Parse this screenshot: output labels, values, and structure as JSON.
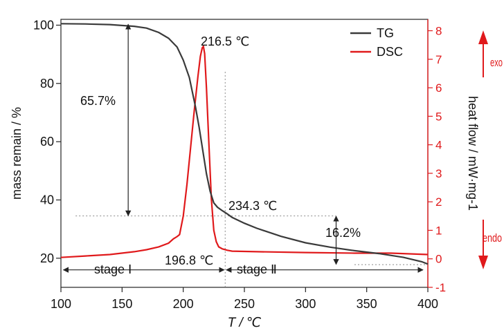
{
  "colors": {
    "tg": "#3a3a3a",
    "dsc": "#e0191b",
    "axis": "#222222",
    "guide": "#888888"
  },
  "chart_data": {
    "type": "line",
    "xlabel": "T / ℃",
    "ylabel": "mass remain / %",
    "y2label": "heat flow / mW·mg-1",
    "xlim": [
      100,
      400
    ],
    "ylim": [
      10,
      102
    ],
    "y2lim": [
      -1,
      8.4
    ],
    "xticks": [
      "100",
      "150",
      "200",
      "250",
      "300",
      "350",
      "400"
    ],
    "yticks": [
      "20",
      "40",
      "60",
      "80",
      "100"
    ],
    "y2ticks": [
      "-1",
      "0",
      "1",
      "2",
      "3",
      "4",
      "5",
      "6",
      "7",
      "8"
    ],
    "legend_position": "top-right",
    "series": [
      {
        "name": "TG",
        "axis": "left",
        "x": [
          100,
          120,
          140,
          160,
          170,
          180,
          188,
          195,
          200,
          205,
          210,
          213,
          216,
          219,
          222,
          225,
          228,
          232,
          236,
          240,
          250,
          260,
          280,
          300,
          320,
          340,
          360,
          380,
          395,
          400
        ],
        "y": [
          100.5,
          100.4,
          100.2,
          99.6,
          99.0,
          97.5,
          95.5,
          92.5,
          88,
          82,
          72,
          65,
          57,
          49,
          43,
          39,
          37.5,
          36.3,
          35.2,
          34,
          32,
          30.3,
          27.5,
          25.3,
          23.8,
          22.6,
          21.6,
          20.3,
          18.8,
          18
        ]
      },
      {
        "name": "DSC",
        "axis": "right",
        "x": [
          100,
          120,
          140,
          160,
          170,
          180,
          188,
          192,
          195,
          197,
          200,
          203,
          206,
          209,
          212,
          214,
          215.5,
          216.5,
          217.5,
          219,
          221,
          223,
          225,
          227,
          229,
          232,
          236,
          240,
          260,
          300,
          340,
          370,
          400
        ],
        "y": [
          0.05,
          0.1,
          0.15,
          0.25,
          0.32,
          0.42,
          0.55,
          0.7,
          0.78,
          0.85,
          1.5,
          2.6,
          3.9,
          5.2,
          6.4,
          7.1,
          7.4,
          7.45,
          7.2,
          6.0,
          4.0,
          2.1,
          1.0,
          0.6,
          0.42,
          0.35,
          0.3,
          0.27,
          0.25,
          0.22,
          0.2,
          0.2,
          0.15
        ]
      }
    ],
    "annotations": {
      "peak": "216.5 ℃",
      "onset": "196.8 ℃",
      "inflection": "234.3 ℃",
      "loss1": "65.7%",
      "loss2": "16.2%",
      "stage1": "stage Ⅰ",
      "stage2": "stage Ⅱ",
      "exo": "exo",
      "endo": "endo"
    }
  }
}
